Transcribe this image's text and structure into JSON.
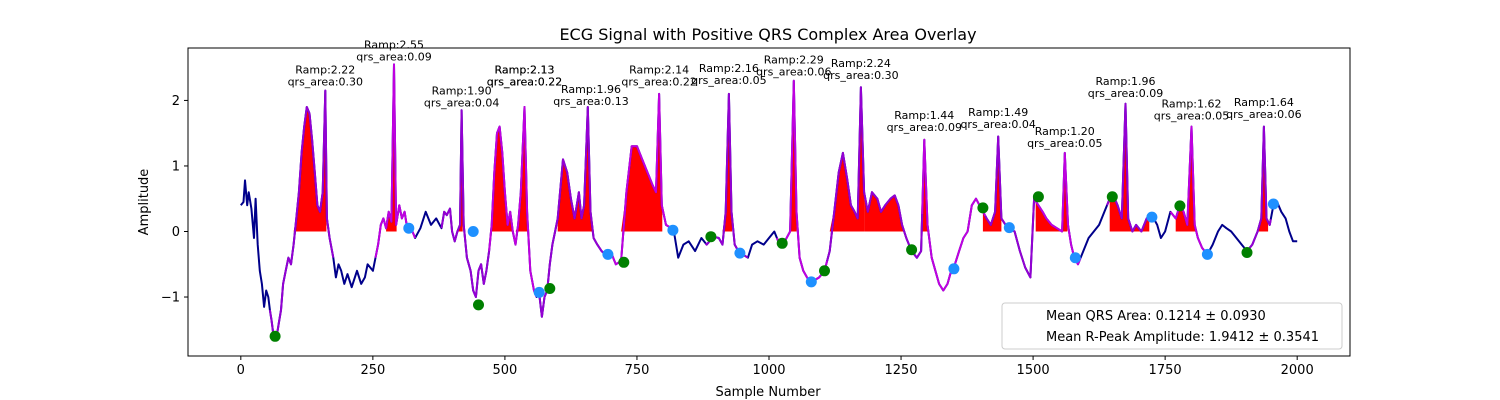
{
  "chart_data": {
    "type": "line",
    "title": "ECG Signal with Positive QRS Complex Area Overlay",
    "xlabel": "Sample Number",
    "ylabel": "Amplitude",
    "xlim": [
      -100,
      2100
    ],
    "ylim": [
      -1.9,
      2.8
    ],
    "xticks": [
      0,
      250,
      500,
      750,
      1000,
      1250,
      1500,
      1750,
      2000
    ],
    "xtick_labels": [
      "0",
      "250",
      "500",
      "750",
      "1000",
      "1250",
      "1500",
      "1750",
      "2000"
    ],
    "yticks": [
      -1,
      0,
      1,
      2
    ],
    "ytick_labels": [
      "−1",
      "0",
      "1",
      "2"
    ],
    "grid": false,
    "colors": {
      "signal": "#00008b",
      "beat": "#9400d3",
      "beat_alt": "#c000e0",
      "area": "#ff0000",
      "onset_marker": "#008000",
      "offset_marker": "#1e90ff"
    },
    "signal_points": [
      [
        0,
        0.4
      ],
      [
        5,
        0.45
      ],
      [
        8,
        0.78
      ],
      [
        12,
        0.4
      ],
      [
        15,
        0.6
      ],
      [
        20,
        0.35
      ],
      [
        25,
        -0.1
      ],
      [
        28,
        0.5
      ],
      [
        32,
        -0.2
      ],
      [
        36,
        -0.6
      ],
      [
        40,
        -0.8
      ],
      [
        44,
        -1.15
      ],
      [
        48,
        -0.9
      ],
      [
        52,
        -1.0
      ],
      [
        55,
        -1.2
      ],
      [
        58,
        -1.35
      ],
      [
        62,
        -1.6
      ],
      [
        65,
        -1.65
      ],
      [
        68,
        -1.6
      ],
      [
        72,
        -1.4
      ],
      [
        76,
        -1.2
      ],
      [
        80,
        -0.8
      ],
      [
        85,
        -0.6
      ],
      [
        90,
        -0.4
      ],
      [
        95,
        -0.5
      ],
      [
        100,
        -0.2
      ],
      [
        105,
        0.2
      ],
      [
        110,
        0.6
      ],
      [
        115,
        1.2
      ],
      [
        120,
        1.6
      ],
      [
        125,
        1.9
      ],
      [
        130,
        1.8
      ],
      [
        135,
        1.4
      ],
      [
        140,
        0.9
      ],
      [
        145,
        0.4
      ],
      [
        150,
        0.3
      ],
      [
        155,
        0.6
      ],
      [
        160,
        2.15
      ],
      [
        163,
        0.2
      ],
      [
        168,
        -0.1
      ],
      [
        175,
        -0.4
      ],
      [
        180,
        -0.7
      ],
      [
        185,
        -0.5
      ],
      [
        190,
        -0.6
      ],
      [
        196,
        -0.8
      ],
      [
        202,
        -0.65
      ],
      [
        210,
        -0.85
      ],
      [
        220,
        -0.6
      ],
      [
        228,
        -0.8
      ],
      [
        235,
        -0.7
      ],
      [
        240,
        -0.5
      ],
      [
        250,
        -0.6
      ],
      [
        255,
        -0.4
      ],
      [
        260,
        -0.2
      ],
      [
        265,
        0.1
      ],
      [
        270,
        0.2
      ],
      [
        275,
        0.05
      ],
      [
        280,
        0.3
      ],
      [
        285,
        0.15
      ],
      [
        290,
        2.55
      ],
      [
        294,
        0.1
      ],
      [
        300,
        0.4
      ],
      [
        305,
        0.2
      ],
      [
        310,
        0.3
      ],
      [
        315,
        0.05
      ],
      [
        320,
        0.1
      ],
      [
        330,
        -0.1
      ],
      [
        340,
        0.05
      ],
      [
        350,
        0.3
      ],
      [
        360,
        0.1
      ],
      [
        370,
        0.2
      ],
      [
        380,
        0.05
      ],
      [
        385,
        0.3
      ],
      [
        390,
        0.25
      ],
      [
        396,
        0.35
      ],
      [
        400,
        0.0
      ],
      [
        405,
        -0.15
      ],
      [
        410,
        0.0
      ],
      [
        415,
        0.1
      ],
      [
        418,
        1.85
      ],
      [
        422,
        0.1
      ],
      [
        428,
        -0.4
      ],
      [
        435,
        -0.6
      ],
      [
        440,
        -0.9
      ],
      [
        445,
        -1.0
      ],
      [
        450,
        -0.6
      ],
      [
        455,
        -0.5
      ],
      [
        460,
        -0.8
      ],
      [
        465,
        -0.6
      ],
      [
        470,
        -0.3
      ],
      [
        475,
        0.1
      ],
      [
        480,
        0.9
      ],
      [
        485,
        1.5
      ],
      [
        490,
        1.6
      ],
      [
        495,
        1.2
      ],
      [
        500,
        0.6
      ],
      [
        505,
        0.1
      ],
      [
        510,
        0.3
      ],
      [
        515,
        0.0
      ],
      [
        520,
        -0.2
      ],
      [
        525,
        0.1
      ],
      [
        530,
        0.6
      ],
      [
        537,
        1.9
      ],
      [
        542,
        0.3
      ],
      [
        548,
        -0.6
      ],
      [
        555,
        -0.9
      ],
      [
        560,
        -1.0
      ],
      [
        565,
        -0.95
      ],
      [
        570,
        -1.3
      ],
      [
        575,
        -1.0
      ],
      [
        580,
        -0.9
      ],
      [
        585,
        -0.5
      ],
      [
        590,
        -0.2
      ],
      [
        595,
        0.0
      ],
      [
        600,
        0.2
      ],
      [
        610,
        1.1
      ],
      [
        618,
        0.9
      ],
      [
        625,
        0.5
      ],
      [
        632,
        0.2
      ],
      [
        640,
        0.6
      ],
      [
        645,
        0.2
      ],
      [
        650,
        0.4
      ],
      [
        657,
        1.9
      ],
      [
        662,
        0.3
      ],
      [
        668,
        -0.1
      ],
      [
        675,
        -0.2
      ],
      [
        683,
        -0.3
      ],
      [
        690,
        -0.35
      ],
      [
        700,
        -0.3
      ],
      [
        710,
        -0.5
      ],
      [
        720,
        -0.45
      ],
      [
        730,
        0.6
      ],
      [
        740,
        1.3
      ],
      [
        750,
        1.3
      ],
      [
        760,
        1.1
      ],
      [
        770,
        0.9
      ],
      [
        775,
        0.8
      ],
      [
        780,
        0.7
      ],
      [
        786,
        0.6
      ],
      [
        792,
        2.1
      ],
      [
        797,
        0.4
      ],
      [
        805,
        0.1
      ],
      [
        815,
        0.05
      ],
      [
        820,
        0.0
      ],
      [
        828,
        -0.4
      ],
      [
        838,
        -0.2
      ],
      [
        848,
        -0.15
      ],
      [
        860,
        -0.3
      ],
      [
        872,
        -0.1
      ],
      [
        882,
        -0.2
      ],
      [
        895,
        -0.08
      ],
      [
        905,
        -0.1
      ],
      [
        912,
        -0.2
      ],
      [
        918,
        0.3
      ],
      [
        924,
        2.1
      ],
      [
        929,
        0.3
      ],
      [
        935,
        -0.2
      ],
      [
        942,
        -0.3
      ],
      [
        950,
        -0.35
      ],
      [
        960,
        -0.4
      ],
      [
        968,
        -0.2
      ],
      [
        978,
        -0.15
      ],
      [
        990,
        -0.2
      ],
      [
        1000,
        -0.1
      ],
      [
        1010,
        0.0
      ],
      [
        1020,
        -0.2
      ],
      [
        1030,
        -0.15
      ],
      [
        1040,
        0.0
      ],
      [
        1047,
        2.3
      ],
      [
        1052,
        0.3
      ],
      [
        1058,
        -0.4
      ],
      [
        1065,
        -0.6
      ],
      [
        1072,
        -0.7
      ],
      [
        1078,
        -0.78
      ],
      [
        1085,
        -0.75
      ],
      [
        1095,
        -0.7
      ],
      [
        1105,
        -0.6
      ],
      [
        1115,
        -0.3
      ],
      [
        1125,
        0.4
      ],
      [
        1132,
        0.9
      ],
      [
        1140,
        1.2
      ],
      [
        1148,
        0.8
      ],
      [
        1155,
        0.4
      ],
      [
        1162,
        0.3
      ],
      [
        1168,
        0.2
      ],
      [
        1174,
        2.2
      ],
      [
        1180,
        0.6
      ],
      [
        1187,
        0.3
      ],
      [
        1195,
        0.6
      ],
      [
        1205,
        0.5
      ],
      [
        1212,
        0.3
      ],
      [
        1220,
        0.4
      ],
      [
        1230,
        0.5
      ],
      [
        1238,
        0.55
      ],
      [
        1245,
        0.4
      ],
      [
        1252,
        0.1
      ],
      [
        1260,
        -0.1
      ],
      [
        1270,
        -0.3
      ],
      [
        1280,
        -0.4
      ],
      [
        1288,
        -0.3
      ],
      [
        1294,
        1.4
      ],
      [
        1300,
        0.1
      ],
      [
        1308,
        -0.4
      ],
      [
        1315,
        -0.6
      ],
      [
        1322,
        -0.8
      ],
      [
        1330,
        -0.9
      ],
      [
        1338,
        -0.8
      ],
      [
        1345,
        -0.6
      ],
      [
        1352,
        -0.5
      ],
      [
        1360,
        -0.3
      ],
      [
        1368,
        -0.1
      ],
      [
        1376,
        0.0
      ],
      [
        1384,
        0.4
      ],
      [
        1392,
        0.5
      ],
      [
        1402,
        0.35
      ],
      [
        1412,
        0.2
      ],
      [
        1420,
        0.1
      ],
      [
        1428,
        0.3
      ],
      [
        1434,
        1.45
      ],
      [
        1440,
        0.2
      ],
      [
        1448,
        0.1
      ],
      [
        1455,
        0.05
      ],
      [
        1465,
        0.0
      ],
      [
        1475,
        -0.3
      ],
      [
        1485,
        -0.55
      ],
      [
        1495,
        -0.7
      ],
      [
        1502,
        0.5
      ],
      [
        1510,
        0.4
      ],
      [
        1518,
        0.3
      ],
      [
        1525,
        0.2
      ],
      [
        1535,
        0.1
      ],
      [
        1545,
        0.05
      ],
      [
        1555,
        0.0
      ],
      [
        1560,
        1.2
      ],
      [
        1566,
        0.1
      ],
      [
        1572,
        -0.2
      ],
      [
        1578,
        -0.4
      ],
      [
        1585,
        -0.5
      ],
      [
        1595,
        -0.3
      ],
      [
        1605,
        -0.1
      ],
      [
        1615,
        0.0
      ],
      [
        1625,
        0.1
      ],
      [
        1635,
        0.3
      ],
      [
        1645,
        0.5
      ],
      [
        1652,
        0.55
      ],
      [
        1660,
        0.4
      ],
      [
        1668,
        0.2
      ],
      [
        1675,
        1.95
      ],
      [
        1680,
        0.2
      ],
      [
        1688,
        0.0
      ],
      [
        1695,
        0.1
      ],
      [
        1705,
        0.0
      ],
      [
        1715,
        0.2
      ],
      [
        1725,
        0.25
      ],
      [
        1735,
        0.1
      ],
      [
        1742,
        -0.1
      ],
      [
        1750,
        0.0
      ],
      [
        1760,
        0.3
      ],
      [
        1770,
        0.2
      ],
      [
        1778,
        0.4
      ],
      [
        1785,
        0.3
      ],
      [
        1792,
        0.1
      ],
      [
        1800,
        1.6
      ],
      [
        1806,
        0.1
      ],
      [
        1812,
        -0.1
      ],
      [
        1820,
        -0.25
      ],
      [
        1830,
        -0.35
      ],
      [
        1840,
        -0.2
      ],
      [
        1850,
        0.0
      ],
      [
        1858,
        0.1
      ],
      [
        1866,
        0.05
      ],
      [
        1875,
        0.0
      ],
      [
        1885,
        -0.1
      ],
      [
        1895,
        -0.2
      ],
      [
        1905,
        -0.3
      ],
      [
        1915,
        -0.2
      ],
      [
        1925,
        0.0
      ],
      [
        1932,
        0.2
      ],
      [
        1937,
        1.6
      ],
      [
        1942,
        0.2
      ],
      [
        1948,
        0.1
      ],
      [
        1955,
        0.4
      ],
      [
        1962,
        0.45
      ],
      [
        1970,
        0.3
      ],
      [
        1978,
        0.2
      ],
      [
        1985,
        0.0
      ],
      [
        1992,
        -0.15
      ],
      [
        2000,
        -0.15
      ]
    ],
    "beat_segments": [
      [
        55,
        175
      ],
      [
        255,
        330
      ],
      [
        380,
        470
      ],
      [
        470,
        560
      ],
      [
        560,
        700
      ],
      [
        700,
        820
      ],
      [
        880,
        960
      ],
      [
        1015,
        1110
      ],
      [
        1110,
        1290
      ],
      [
        1290,
        1410
      ],
      [
        1410,
        1505
      ],
      [
        1505,
        1590
      ],
      [
        1640,
        1730
      ],
      [
        1760,
        1835
      ],
      [
        1905,
        1950
      ]
    ],
    "qrs_areas": [
      [
        100,
        162
      ],
      [
        275,
        295
      ],
      [
        405,
        420
      ],
      [
        475,
        545
      ],
      [
        600,
        665
      ],
      [
        720,
        798
      ],
      [
        905,
        930
      ],
      [
        1035,
        1052
      ],
      [
        1115,
        1180
      ],
      [
        1180,
        1255
      ],
      [
        1285,
        1300
      ],
      [
        1405,
        1440
      ],
      [
        1505,
        1565
      ],
      [
        1645,
        1720
      ],
      [
        1770,
        1810
      ],
      [
        1910,
        1945
      ]
    ],
    "onset_markers": [
      [
        65,
        -1.6
      ],
      [
        450,
        -1.12
      ],
      [
        585,
        -0.87
      ],
      [
        725,
        -0.47
      ],
      [
        890,
        -0.08
      ],
      [
        1025,
        -0.18
      ],
      [
        1105,
        -0.6
      ],
      [
        1270,
        -0.28
      ],
      [
        1405,
        0.36
      ],
      [
        1510,
        0.53
      ],
      [
        1650,
        0.53
      ],
      [
        1778,
        0.39
      ],
      [
        1905,
        -0.32
      ]
    ],
    "offset_markers": [
      [
        318,
        0.05
      ],
      [
        440,
        0.0
      ],
      [
        565,
        -0.93
      ],
      [
        695,
        -0.35
      ],
      [
        818,
        0.02
      ],
      [
        945,
        -0.33
      ],
      [
        1080,
        -0.77
      ],
      [
        1350,
        -0.57
      ],
      [
        1455,
        0.06
      ],
      [
        1580,
        -0.4
      ],
      [
        1725,
        0.22
      ],
      [
        1830,
        -0.35
      ],
      [
        1955,
        0.42
      ]
    ],
    "annotations": [
      {
        "x": 160,
        "y": 2.2,
        "ramp": "Ramp:2.22",
        "area": "qrs_area:0.30"
      },
      {
        "x": 290,
        "y": 2.58,
        "ramp": "Ramp:2.55",
        "area": "qrs_area:0.09"
      },
      {
        "x": 418,
        "y": 1.88,
        "ramp": "Ramp:1.90",
        "area": "qrs_area:0.04"
      },
      {
        "x": 537,
        "y": 2.2,
        "ramp": "Ramp:2.13",
        "area": "qrs_area:0.22"
      },
      {
        "x": 537,
        "y": 2.2,
        "ramp": "Ramp:2.13",
        "area": "qrs_area:0.22"
      },
      {
        "x": 663,
        "y": 1.9,
        "ramp": "Ramp:1.96",
        "area": "qrs_area:0.13"
      },
      {
        "x": 792,
        "y": 2.2,
        "ramp": "Ramp:2.14",
        "area": "qrs_area:0.22"
      },
      {
        "x": 924,
        "y": 2.22,
        "ramp": "Ramp:2.16",
        "area": "qrs_area:0.05"
      },
      {
        "x": 1047,
        "y": 2.35,
        "ramp": "Ramp:2.29",
        "area": "qrs_area:0.06"
      },
      {
        "x": 1174,
        "y": 2.3,
        "ramp": "Ramp:2.24",
        "area": "qrs_area:0.30"
      },
      {
        "x": 1294,
        "y": 1.5,
        "ramp": "Ramp:1.44",
        "area": "qrs_area:0.09"
      },
      {
        "x": 1434,
        "y": 1.55,
        "ramp": "Ramp:1.49",
        "area": "qrs_area:0.04"
      },
      {
        "x": 1560,
        "y": 1.26,
        "ramp": "Ramp:1.20",
        "area": "qrs_area:0.05"
      },
      {
        "x": 1675,
        "y": 2.02,
        "ramp": "Ramp:1.96",
        "area": "qrs_area:0.09"
      },
      {
        "x": 1800,
        "y": 1.68,
        "ramp": "Ramp:1.62",
        "area": "qrs_area:0.05"
      },
      {
        "x": 1937,
        "y": 1.7,
        "ramp": "Ramp:1.64",
        "area": "qrs_area:0.06"
      }
    ],
    "legend": {
      "placement": "lower-right",
      "entries": [
        "Mean QRS Area: 0.1214 ± 0.0930",
        "Mean R-Peak Amplitude: 1.9412 ± 0.3541"
      ]
    }
  }
}
